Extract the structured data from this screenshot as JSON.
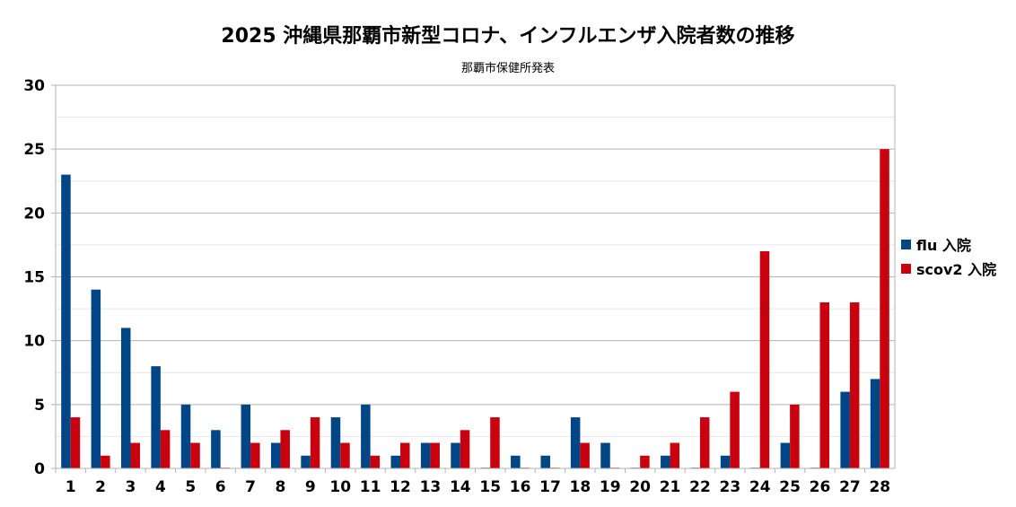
{
  "chart_data": {
    "type": "bar",
    "title": "2025 沖縄県那覇市新型コロナ、インフルエンザ入院者数の推移",
    "subtitle": "那覇市保健所発表",
    "categories": [
      "1",
      "2",
      "3",
      "4",
      "5",
      "6",
      "7",
      "8",
      "9",
      "10",
      "11",
      "12",
      "13",
      "14",
      "15",
      "16",
      "17",
      "18",
      "19",
      "20",
      "21",
      "22",
      "23",
      "24",
      "25",
      "26",
      "27",
      "28"
    ],
    "series": [
      {
        "name": "flu 入院",
        "color": "#004586",
        "values": [
          23,
          14,
          11,
          8,
          5,
          3,
          5,
          2,
          1,
          4,
          5,
          1,
          2,
          2,
          0,
          1,
          1,
          4,
          2,
          0,
          1,
          0,
          1,
          0,
          2,
          0,
          6,
          7
        ]
      },
      {
        "name": "scov2 入院",
        "color": "#c9000d",
        "values": [
          4,
          1,
          2,
          3,
          2,
          0,
          2,
          3,
          4,
          2,
          1,
          2,
          2,
          3,
          4,
          0,
          0,
          2,
          0,
          1,
          2,
          4,
          6,
          17,
          5,
          13,
          13,
          25
        ]
      }
    ],
    "ylim": [
      0,
      30
    ],
    "yticks": [
      0,
      5,
      10,
      15,
      20,
      25,
      30
    ],
    "grid": true,
    "legend_position": "right"
  }
}
